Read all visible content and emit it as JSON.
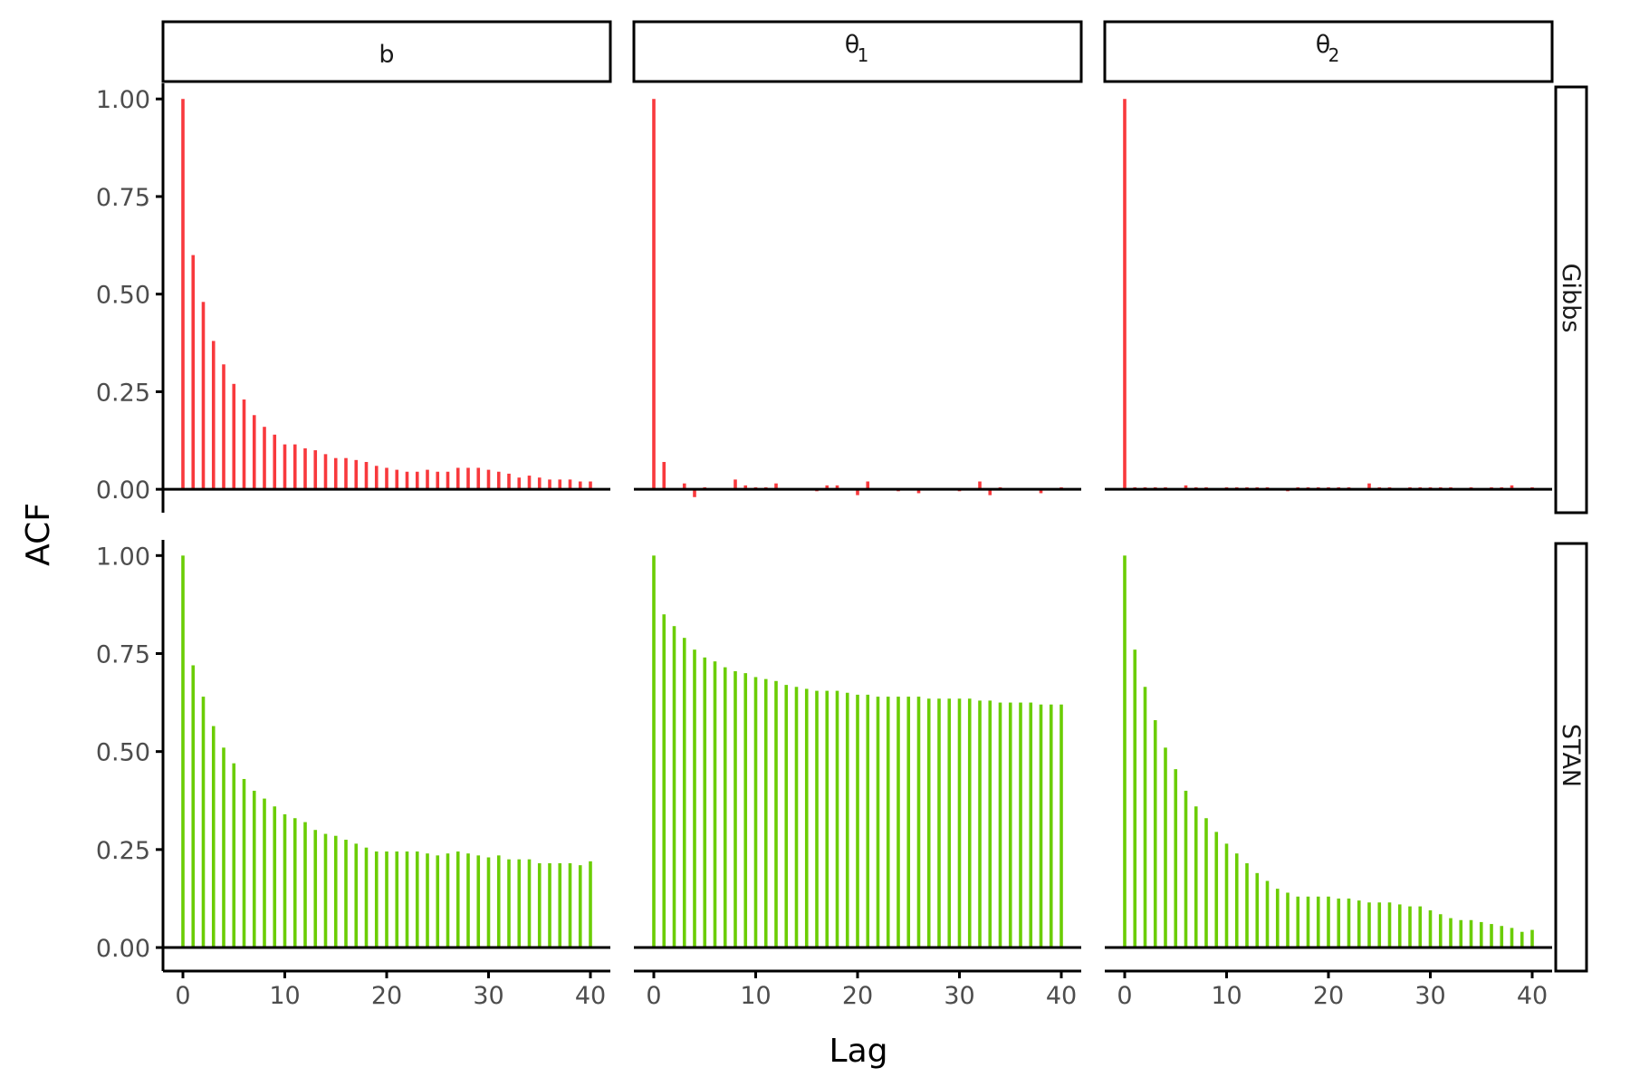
{
  "chart_data": {
    "type": "bar",
    "xlabel": "Lag",
    "ylabel": "ACF",
    "xlim": [
      0,
      40
    ],
    "ylim": [
      -0.06,
      1.04
    ],
    "x_ticks": [
      0,
      10,
      20,
      30,
      40
    ],
    "x_tick_labels": [
      "0",
      "10",
      "20",
      "30",
      "40"
    ],
    "y_ticks": [
      0,
      0.25,
      0.5,
      0.75,
      1
    ],
    "y_tick_labels": [
      "0.00",
      "0.25",
      "0.50",
      "0.75",
      "1.00"
    ],
    "grid": false,
    "facet_columns": [
      {
        "label": "b",
        "subscript": ""
      },
      {
        "label": "θ",
        "subscript": "1"
      },
      {
        "label": "θ",
        "subscript": "2"
      }
    ],
    "facet_rows": [
      {
        "label": "Gibbs",
        "color": "#f8393d"
      },
      {
        "label": "STAN",
        "color": "#6bcd05"
      }
    ],
    "lags": [
      0,
      1,
      2,
      3,
      4,
      5,
      6,
      7,
      8,
      9,
      10,
      11,
      12,
      13,
      14,
      15,
      16,
      17,
      18,
      19,
      20,
      21,
      22,
      23,
      24,
      25,
      26,
      27,
      28,
      29,
      30,
      31,
      32,
      33,
      34,
      35,
      36,
      37,
      38,
      39,
      40
    ],
    "panels": [
      {
        "row": "Gibbs",
        "column": "b",
        "values": [
          1.0,
          0.6,
          0.48,
          0.38,
          0.32,
          0.27,
          0.23,
          0.19,
          0.16,
          0.14,
          0.115,
          0.115,
          0.105,
          0.1,
          0.09,
          0.08,
          0.08,
          0.075,
          0.07,
          0.06,
          0.055,
          0.05,
          0.045,
          0.045,
          0.05,
          0.045,
          0.045,
          0.055,
          0.055,
          0.055,
          0.05,
          0.045,
          0.04,
          0.03,
          0.035,
          0.03,
          0.025,
          0.025,
          0.025,
          0.02,
          0.02
        ]
      },
      {
        "row": "Gibbs",
        "column": "θ1",
        "values": [
          1.0,
          0.07,
          0.0,
          0.015,
          -0.02,
          0.005,
          0.0,
          0.0,
          0.025,
          0.01,
          0.005,
          0.005,
          0.015,
          0.0,
          0.0,
          0.0,
          -0.005,
          0.01,
          0.01,
          0.0,
          -0.015,
          0.02,
          0.0,
          0.0,
          -0.005,
          0.0,
          -0.01,
          0.0,
          0.0,
          0.0,
          -0.005,
          0.0,
          0.02,
          -0.015,
          0.005,
          0.0,
          0.0,
          0.0,
          -0.01,
          0.0,
          0.005
        ]
      },
      {
        "row": "Gibbs",
        "column": "θ2",
        "values": [
          1.0,
          0.005,
          0.005,
          0.005,
          0.005,
          0.0,
          0.01,
          0.005,
          0.005,
          0.0,
          0.005,
          0.005,
          0.005,
          0.005,
          0.005,
          0.0,
          -0.005,
          0.005,
          0.005,
          0.005,
          0.005,
          0.005,
          0.005,
          0.0,
          0.015,
          0.005,
          0.005,
          0.0,
          0.005,
          0.005,
          0.005,
          0.005,
          0.005,
          0.0,
          0.005,
          0.0,
          0.005,
          0.005,
          0.01,
          0.0,
          0.005
        ]
      },
      {
        "row": "STAN",
        "column": "b",
        "values": [
          1.0,
          0.72,
          0.64,
          0.565,
          0.51,
          0.47,
          0.43,
          0.4,
          0.38,
          0.36,
          0.34,
          0.33,
          0.32,
          0.3,
          0.29,
          0.285,
          0.275,
          0.265,
          0.255,
          0.245,
          0.245,
          0.245,
          0.245,
          0.245,
          0.24,
          0.235,
          0.24,
          0.245,
          0.24,
          0.235,
          0.23,
          0.235,
          0.225,
          0.225,
          0.225,
          0.215,
          0.215,
          0.215,
          0.215,
          0.21,
          0.22
        ]
      },
      {
        "row": "STAN",
        "column": "θ1",
        "values": [
          1.0,
          0.85,
          0.82,
          0.79,
          0.76,
          0.74,
          0.73,
          0.715,
          0.705,
          0.7,
          0.69,
          0.685,
          0.68,
          0.67,
          0.665,
          0.66,
          0.655,
          0.655,
          0.655,
          0.65,
          0.645,
          0.645,
          0.64,
          0.64,
          0.64,
          0.64,
          0.64,
          0.635,
          0.635,
          0.635,
          0.635,
          0.635,
          0.63,
          0.63,
          0.625,
          0.625,
          0.625,
          0.625,
          0.62,
          0.62,
          0.62
        ]
      },
      {
        "row": "STAN",
        "column": "θ2",
        "values": [
          1.0,
          0.76,
          0.665,
          0.58,
          0.51,
          0.455,
          0.4,
          0.36,
          0.33,
          0.295,
          0.265,
          0.24,
          0.215,
          0.19,
          0.17,
          0.15,
          0.14,
          0.13,
          0.13,
          0.13,
          0.13,
          0.125,
          0.125,
          0.12,
          0.115,
          0.115,
          0.115,
          0.11,
          0.105,
          0.105,
          0.095,
          0.085,
          0.075,
          0.07,
          0.07,
          0.065,
          0.06,
          0.055,
          0.05,
          0.04,
          0.045
        ]
      }
    ]
  }
}
